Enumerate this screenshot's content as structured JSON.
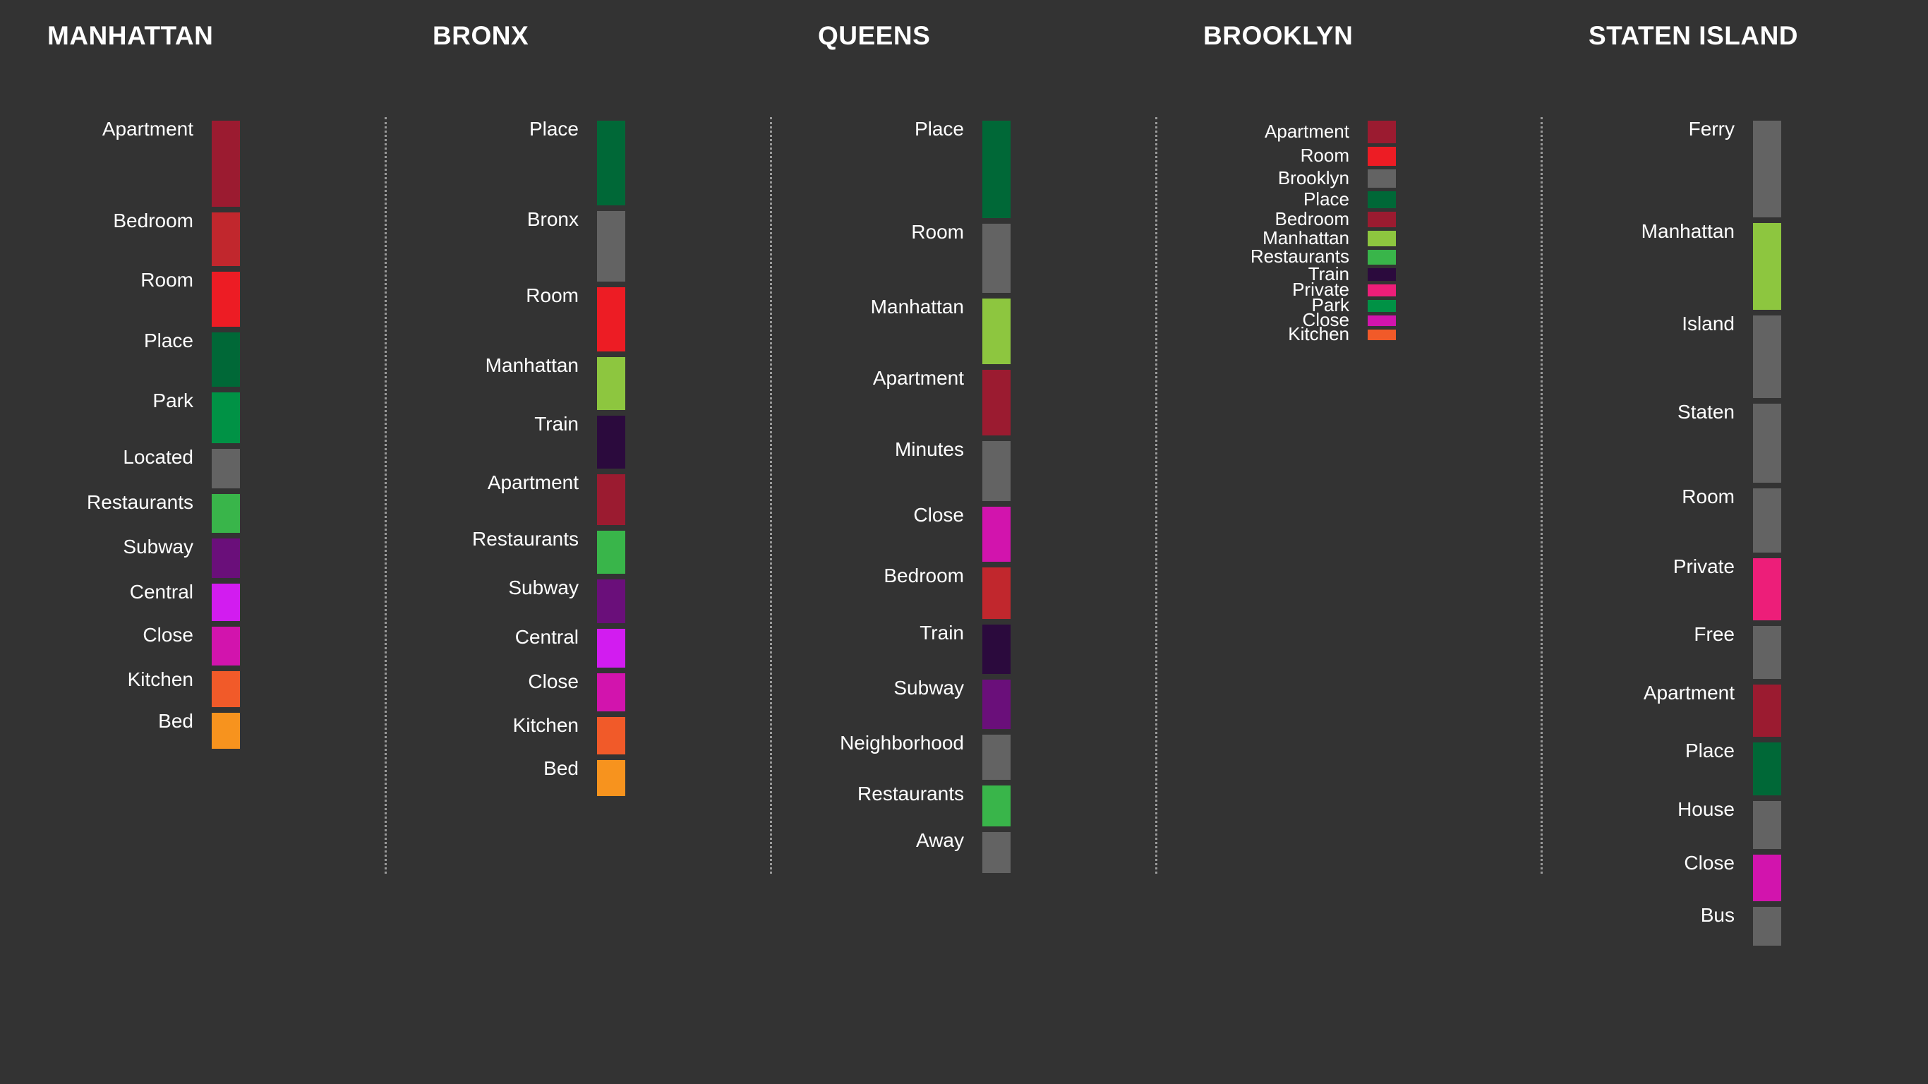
{
  "chart_data": {
    "type": "bar",
    "description_values": "Each borough column lists top words; value = relative weight shown by bar height",
    "columns": [
      {
        "title": "MANHATTAN",
        "terms": [
          {
            "label": "Apartment",
            "value": 122,
            "color": "#9b1b30"
          },
          {
            "label": "Bedroom",
            "value": 76,
            "color": "#c1272d"
          },
          {
            "label": "Room",
            "value": 78,
            "color": "#ed1c24"
          },
          {
            "label": "Place",
            "value": 77,
            "color": "#006837"
          },
          {
            "label": "Park",
            "value": 72,
            "color": "#009245"
          },
          {
            "label": "Located",
            "value": 56,
            "color": "#636363"
          },
          {
            "label": "Restaurants",
            "value": 55,
            "color": "#39b54a"
          },
          {
            "label": "Subway",
            "value": 56,
            "color": "#6a0f7a"
          },
          {
            "label": "Central",
            "value": 53,
            "color": "#d21cf0"
          },
          {
            "label": "Close",
            "value": 55,
            "color": "#d214ad"
          },
          {
            "label": "Kitchen",
            "value": 51,
            "color": "#f15a29"
          },
          {
            "label": "Bed",
            "value": 51,
            "color": "#f7931e"
          }
        ]
      },
      {
        "title": "BRONX",
        "terms": [
          {
            "label": "Place",
            "value": 120,
            "color": "#006837"
          },
          {
            "label": "Bronx",
            "value": 100,
            "color": "#636363"
          },
          {
            "label": "Room",
            "value": 91,
            "color": "#ed1c24"
          },
          {
            "label": "Manhattan",
            "value": 75,
            "color": "#8dc63f"
          },
          {
            "label": "Train",
            "value": 75,
            "color": "#2b0a3d"
          },
          {
            "label": "Apartment",
            "value": 72,
            "color": "#9b1b30"
          },
          {
            "label": "Restaurants",
            "value": 61,
            "color": "#39b54a"
          },
          {
            "label": "Subway",
            "value": 62,
            "color": "#6a0f7a"
          },
          {
            "label": "Central",
            "value": 55,
            "color": "#d21cf0"
          },
          {
            "label": "Close",
            "value": 54,
            "color": "#d214ad"
          },
          {
            "label": "Kitchen",
            "value": 53,
            "color": "#f15a29"
          },
          {
            "label": "Bed",
            "value": 51,
            "color": "#f7931e"
          }
        ]
      },
      {
        "title": "QUEENS",
        "terms": [
          {
            "label": "Place",
            "value": 138,
            "color": "#006837"
          },
          {
            "label": "Room",
            "value": 98,
            "color": "#636363"
          },
          {
            "label": "Manhattan",
            "value": 93,
            "color": "#8dc63f"
          },
          {
            "label": "Apartment",
            "value": 93,
            "color": "#9b1b30"
          },
          {
            "label": "Minutes",
            "value": 85,
            "color": "#636363"
          },
          {
            "label": "Close",
            "value": 78,
            "color": "#d214ad"
          },
          {
            "label": "Bedroom",
            "value": 73,
            "color": "#c1272d"
          },
          {
            "label": "Train",
            "value": 70,
            "color": "#2b0a3d"
          },
          {
            "label": "Subway",
            "value": 70,
            "color": "#6a0f7a"
          },
          {
            "label": "Neighborhood",
            "value": 64,
            "color": "#636363"
          },
          {
            "label": "Restaurants",
            "value": 58,
            "color": "#39b54a"
          },
          {
            "label": "Away",
            "value": 58,
            "color": "#636363"
          }
        ]
      },
      {
        "title": "BROOKLYN",
        "terms": [
          {
            "label": "Apartment",
            "value": 32,
            "color": "#9b1b30"
          },
          {
            "label": "Room",
            "value": 27,
            "color": "#ed1c24"
          },
          {
            "label": "Brooklyn",
            "value": 26,
            "color": "#636363"
          },
          {
            "label": "Place",
            "value": 24,
            "color": "#006837"
          },
          {
            "label": "Bedroom",
            "value": 22,
            "color": "#9b1b30"
          },
          {
            "label": "Manhattan",
            "value": 22,
            "color": "#8dc63f"
          },
          {
            "label": "Restaurants",
            "value": 21,
            "color": "#39b54a"
          },
          {
            "label": "Train",
            "value": 18,
            "color": "#2b0a3d"
          },
          {
            "label": "Private",
            "value": 17,
            "color": "#ed1e79"
          },
          {
            "label": "Park",
            "value": 17,
            "color": "#009245"
          },
          {
            "label": "Close",
            "value": 15,
            "color": "#d214ad"
          },
          {
            "label": "Kitchen",
            "value": 15,
            "color": "#f15a29"
          }
        ]
      },
      {
        "title": "STATEN ISLAND",
        "terms": [
          {
            "label": "Ferry",
            "value": 137,
            "color": "#636363"
          },
          {
            "label": "Manhattan",
            "value": 123,
            "color": "#8dc63f"
          },
          {
            "label": "Island",
            "value": 117,
            "color": "#636363"
          },
          {
            "label": "Staten",
            "value": 112,
            "color": "#636363"
          },
          {
            "label": "Room",
            "value": 91,
            "color": "#636363"
          },
          {
            "label": "Private",
            "value": 88,
            "color": "#ed1e79"
          },
          {
            "label": "Free",
            "value": 75,
            "color": "#636363"
          },
          {
            "label": "Apartment",
            "value": 74,
            "color": "#9b1b30"
          },
          {
            "label": "Place",
            "value": 75,
            "color": "#006837"
          },
          {
            "label": "House",
            "value": 68,
            "color": "#636363"
          },
          {
            "label": "Close",
            "value": 66,
            "color": "#d214ad"
          },
          {
            "label": "Bus",
            "value": 55,
            "color": "#636363"
          }
        ]
      }
    ]
  }
}
